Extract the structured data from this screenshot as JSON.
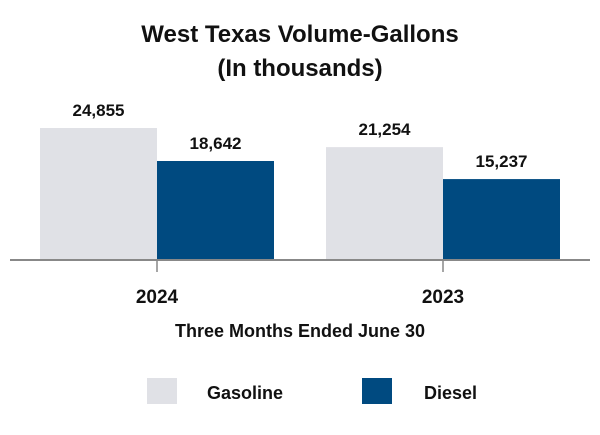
{
  "chart_data": {
    "type": "bar",
    "title": "West Texas Volume-Gallons",
    "subtitle": "(In thousands)",
    "xlabel": "Three Months Ended June 30",
    "ylabel": "",
    "categories": [
      "2024",
      "2023"
    ],
    "series": [
      {
        "name": "Gasoline",
        "values": [
          24855,
          21254
        ],
        "labels": [
          "24,855",
          "21,254"
        ],
        "color": "#e0e1e6"
      },
      {
        "name": "Diesel",
        "values": [
          18642,
          15237
        ],
        "labels": [
          "18,642",
          "15,237"
        ],
        "color": "#004a80"
      }
    ],
    "ylim": [
      0,
      24855
    ],
    "grid": false,
    "legend": "bottom"
  }
}
